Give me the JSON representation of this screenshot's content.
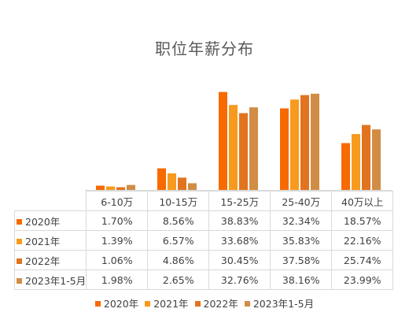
{
  "chart_data": {
    "type": "bar",
    "title": "职位年薪分布",
    "categories": [
      "6-10万",
      "10-15万",
      "15-25万",
      "25-40万",
      "40万以上"
    ],
    "series": [
      {
        "name": "2020年",
        "color": "#f76a00",
        "values": [
          1.7,
          8.56,
          38.83,
          32.34,
          18.57
        ],
        "labels": [
          "1.70%",
          "8.56%",
          "38.83%",
          "32.34%",
          "18.57%"
        ]
      },
      {
        "name": "2021年",
        "color": "#f79a1e",
        "values": [
          1.39,
          6.57,
          33.68,
          35.83,
          22.16
        ],
        "labels": [
          "1.39%",
          "6.57%",
          "33.68%",
          "35.83%",
          "22.16%"
        ]
      },
      {
        "name": "2022年",
        "color": "#e2731f",
        "values": [
          1.06,
          4.86,
          30.45,
          37.58,
          25.74
        ],
        "labels": [
          "1.06%",
          "4.86%",
          "30.45%",
          "37.58%",
          "25.74%"
        ]
      },
      {
        "name": "2023年1-5月",
        "color": "#d18d45",
        "values": [
          1.98,
          2.65,
          32.76,
          38.16,
          23.99
        ],
        "labels": [
          "1.98%",
          "2.65%",
          "32.76%",
          "38.16%",
          "23.99%"
        ]
      }
    ],
    "ylim": [
      0,
      40
    ],
    "grid": false,
    "data_table": true,
    "legend_position": "bottom"
  }
}
